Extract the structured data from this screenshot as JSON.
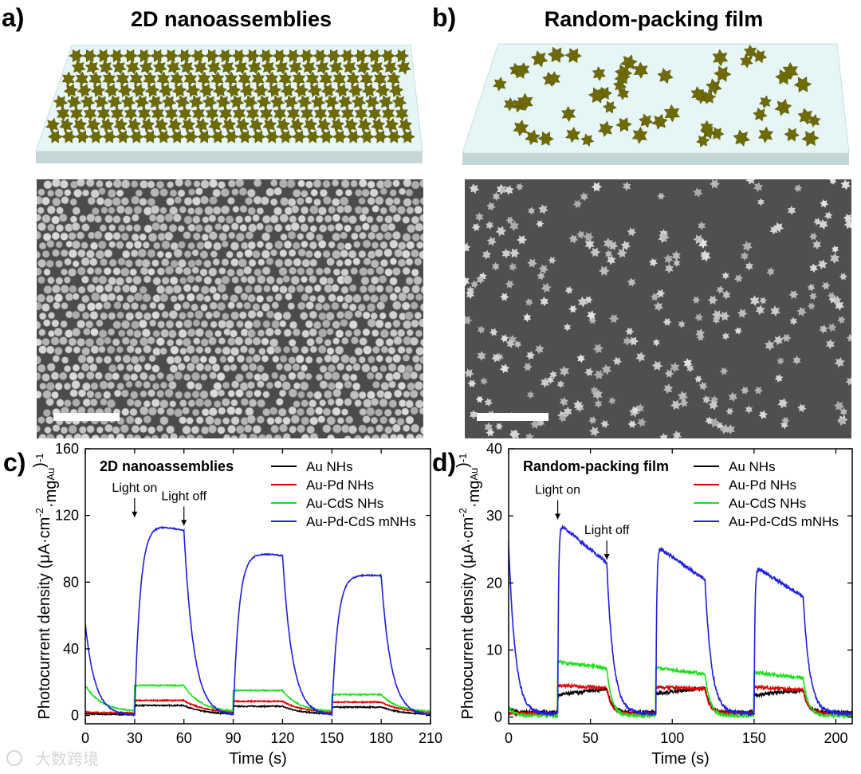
{
  "panels": {
    "a": {
      "letter": "a)",
      "title": "2D nanoassemblies"
    },
    "b": {
      "letter": "b)",
      "title": "Random-packing film"
    }
  },
  "watermark": {
    "text": "大数跨境"
  },
  "colors": {
    "particle": "#6e6a06",
    "particle_edge": "#4a4703",
    "substrate_top": "#e6f5f5",
    "substrate_side": "#c5d6d6",
    "sem_bg": "#4b4b4b",
    "sem_particle": "#bdbdbd",
    "scale_bar": "#ffffff"
  },
  "chart_data": [
    {
      "panel": "c",
      "letter": "c)",
      "type": "line",
      "title": "2D nanoassemblies",
      "xlabel": "Time (s)",
      "ylabel_main": "Photocurrent density (μA·cm",
      "ylabel_sup1": "-2",
      "ylabel_mid": "·mg",
      "ylabel_sub": "Au",
      "ylabel_end": ")",
      "ylabel_sup2": "-1",
      "xlim": [
        0,
        210
      ],
      "ylim": [
        -5,
        160
      ],
      "xticks": [
        0,
        30,
        60,
        90,
        120,
        150,
        180,
        210
      ],
      "yticks": [
        0,
        40,
        80,
        120,
        160
      ],
      "cycles": [
        [
          30,
          60
        ],
        [
          90,
          120
        ],
        [
          150,
          180
        ]
      ],
      "annotations": [
        {
          "text": "Light on",
          "x": 30,
          "y": 117
        },
        {
          "text": "Light off",
          "x": 60,
          "y": 112
        }
      ],
      "legend_position": "top-right",
      "series": [
        {
          "name": "Au NHs",
          "color": "#000000",
          "dark": 0.5,
          "on_levels": [
            6,
            5.5,
            5
          ],
          "decay": 12,
          "init": 1
        },
        {
          "name": "Au-Pd NHs",
          "color": "#e00000",
          "dark": 1.5,
          "on_levels": [
            9,
            8.5,
            8
          ],
          "decay": 12,
          "init": 2
        },
        {
          "name": "Au-CdS NHs",
          "color": "#22dd22",
          "dark": 2,
          "on_levels": [
            18,
            15,
            12.5
          ],
          "decay": 10,
          "init": 18
        },
        {
          "name": "Au-Pd-CdS mNHs",
          "color": "#1f1fe0",
          "dark": 0,
          "on_levels": [
            117,
            99,
            85
          ],
          "on_end": [
            111,
            96,
            84
          ],
          "decay": 6,
          "init": 55,
          "rise": 3.5
        }
      ]
    },
    {
      "panel": "d",
      "letter": "d)",
      "type": "line",
      "title": "Random-packing film",
      "xlabel": "Time (s)",
      "ylabel_main": "Photocurrent density (μA·cm",
      "ylabel_sup1": "-2",
      "ylabel_mid": "·mg",
      "ylabel_sub": "Au",
      "ylabel_end": ")",
      "ylabel_sup2": "-1",
      "xlim": [
        0,
        210
      ],
      "ylim": [
        -1,
        40
      ],
      "xticks": [
        0,
        50,
        100,
        150,
        200
      ],
      "yticks": [
        0,
        10,
        20,
        30,
        40
      ],
      "cycles": [
        [
          30,
          60
        ],
        [
          90,
          120
        ],
        [
          150,
          180
        ]
      ],
      "annotations": [
        {
          "text": "Light on",
          "x": 30,
          "y": 29
        },
        {
          "text": "Light off",
          "x": 60,
          "y": 23
        }
      ],
      "legend_position": "top-right",
      "series": [
        {
          "name": "Au NHs",
          "color": "#000000",
          "dark": 0.7,
          "on_levels": [
            3.3,
            3.5,
            3.3
          ],
          "on_end": [
            4.2,
            4.3,
            4
          ],
          "decay": 3,
          "init": 1.5
        },
        {
          "name": "Au-Pd NHs",
          "color": "#e00000",
          "dark": 0.5,
          "on_levels": [
            4.8,
            4.5,
            4.5
          ],
          "on_end": [
            4.3,
            4.2,
            4
          ],
          "decay": 3,
          "init": 0.5
        },
        {
          "name": "Au-CdS NHs",
          "color": "#22dd22",
          "dark": 0.2,
          "on_levels": [
            8.2,
            7.3,
            6.7
          ],
          "on_end": [
            7.3,
            6.4,
            5.8
          ],
          "decay": 3,
          "init": 1.5
        },
        {
          "name": "Au-Pd-CdS mNHs",
          "color": "#1f1fe0",
          "dark": 0.5,
          "on_levels": [
            29,
            25.5,
            22.5
          ],
          "on_end": [
            23,
            20.5,
            18
          ],
          "decay": 4,
          "init": 26,
          "rise": 0.5
        }
      ]
    }
  ]
}
